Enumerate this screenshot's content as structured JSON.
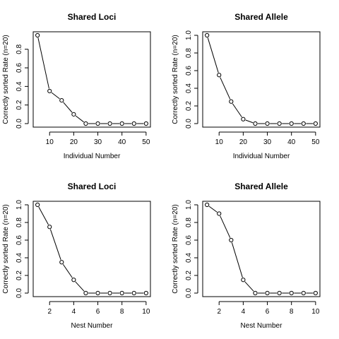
{
  "chart_data": [
    {
      "type": "line",
      "title": "Shared Loci",
      "xlabel": "Individual Number",
      "ylabel": "Correctly sorted Rate (n=20)",
      "x": [
        5,
        10,
        15,
        20,
        25,
        30,
        35,
        40,
        45,
        50
      ],
      "values": [
        0.95,
        0.35,
        0.25,
        0.1,
        0.0,
        0.0,
        0.0,
        0.0,
        0.0,
        0.0
      ],
      "xlim": [
        3.2,
        51.8
      ],
      "ylim": [
        -0.038,
        0.988
      ],
      "xticks": [
        10,
        20,
        30,
        40,
        50
      ],
      "yticks": [
        0.0,
        0.2,
        0.4,
        0.6,
        0.8
      ],
      "xtick_labels": [
        "10",
        "20",
        "30",
        "40",
        "50"
      ],
      "ytick_labels": [
        "0.0",
        "0.2",
        "0.4",
        "0.6",
        "0.8"
      ]
    },
    {
      "type": "line",
      "title": "Shared Allele",
      "xlabel": "Individual Number",
      "ylabel": "Correctly sorted Rate (n=20)",
      "x": [
        5,
        10,
        15,
        20,
        25,
        30,
        35,
        40,
        45,
        50
      ],
      "values": [
        1.0,
        0.55,
        0.25,
        0.05,
        0.0,
        0.0,
        0.0,
        0.0,
        0.0,
        0.0
      ],
      "xlim": [
        3.2,
        51.8
      ],
      "ylim": [
        -0.04,
        1.04
      ],
      "xticks": [
        10,
        20,
        30,
        40,
        50
      ],
      "yticks": [
        0.0,
        0.2,
        0.4,
        0.6,
        0.8,
        1.0
      ],
      "xtick_labels": [
        "10",
        "20",
        "30",
        "40",
        "50"
      ],
      "ytick_labels": [
        "0.0",
        "0.2",
        "0.4",
        "0.6",
        "0.8",
        "1.0"
      ]
    },
    {
      "type": "line",
      "title": "Shared Loci",
      "xlabel": "Nest Number",
      "ylabel": "Correctly sorted Rate (n=20)",
      "x": [
        1,
        2,
        3,
        4,
        5,
        6,
        7,
        8,
        9,
        10
      ],
      "values": [
        1.0,
        0.75,
        0.35,
        0.15,
        0.0,
        0.0,
        0.0,
        0.0,
        0.0,
        0.0
      ],
      "xlim": [
        0.64,
        10.36
      ],
      "ylim": [
        -0.04,
        1.04
      ],
      "xticks": [
        2,
        4,
        6,
        8,
        10
      ],
      "yticks": [
        0.0,
        0.2,
        0.4,
        0.6,
        0.8,
        1.0
      ],
      "xtick_labels": [
        "2",
        "4",
        "6",
        "8",
        "10"
      ],
      "ytick_labels": [
        "0.0",
        "0.2",
        "0.4",
        "0.6",
        "0.8",
        "1.0"
      ]
    },
    {
      "type": "line",
      "title": "Shared Allele",
      "xlabel": "Nest Number",
      "ylabel": "Correctly sorted Rate (n=20)",
      "x": [
        1,
        2,
        3,
        4,
        5,
        6,
        7,
        8,
        9,
        10
      ],
      "values": [
        1.0,
        0.9,
        0.6,
        0.15,
        0.0,
        0.0,
        0.0,
        0.0,
        0.0,
        0.0
      ],
      "xlim": [
        0.64,
        10.36
      ],
      "ylim": [
        -0.04,
        1.04
      ],
      "xticks": [
        2,
        4,
        6,
        8,
        10
      ],
      "yticks": [
        0.0,
        0.2,
        0.4,
        0.6,
        0.8,
        1.0
      ],
      "xtick_labels": [
        "2",
        "4",
        "6",
        "8",
        "10"
      ],
      "ytick_labels": [
        "0.0",
        "0.2",
        "0.4",
        "0.6",
        "0.8",
        "1.0"
      ]
    }
  ]
}
